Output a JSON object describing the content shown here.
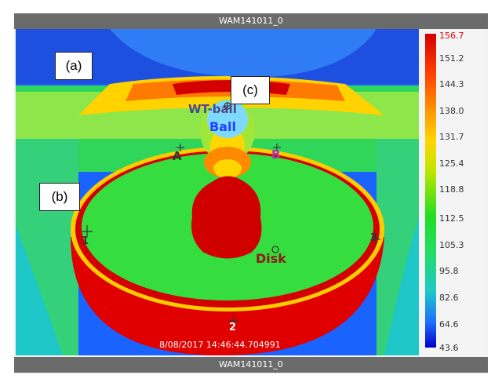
{
  "window": {
    "title_top": "WAM141011_0",
    "title_bottom": "WAM141011_0"
  },
  "thermal_image": {
    "timestamp": "8/08/2017 14:46:44.704991",
    "markers": {
      "wt_ball": "WT-ball",
      "ball": "Ball",
      "a": "A",
      "b": "B",
      "disk": "Disk",
      "point_1": "1",
      "point_2": "2",
      "point_3": "3"
    },
    "figure_labels": {
      "a": "(a)",
      "b": "(b)",
      "c": "(c)"
    }
  },
  "color_scale": {
    "ticks": [
      "156.7",
      "151.2",
      "144.3",
      "138.0",
      "131.7",
      "125.4",
      "118.8",
      "112.5",
      "105.3",
      "95.8",
      "82.6",
      "64.6",
      "43.6"
    ],
    "max_color": "#e00000",
    "colors": [
      "#d40000",
      "#ff9900",
      "#ffd600",
      "#22dd22",
      "#1ec8c8",
      "#1e6eff",
      "#0000c8"
    ]
  }
}
